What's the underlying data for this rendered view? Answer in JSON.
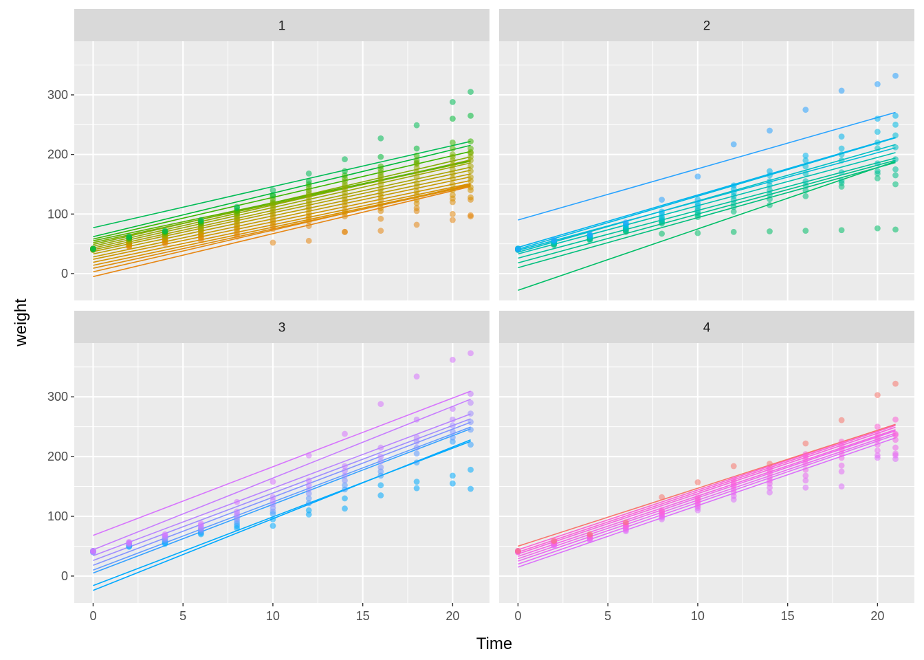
{
  "chart_data": {
    "type": "scatter",
    "facet_by": "Diet",
    "xlabel": "Time",
    "ylabel": "weight",
    "x_ticks": [
      0,
      5,
      10,
      15,
      20
    ],
    "y_ticks": [
      0,
      100,
      200,
      300
    ],
    "xlim": [
      -1.05,
      22.05
    ],
    "ylim": [
      -45,
      390
    ],
    "grid": true,
    "times": [
      0,
      2,
      4,
      6,
      8,
      10,
      12,
      14,
      16,
      18,
      20,
      21
    ],
    "panels": [
      {
        "label": "1",
        "chicks": [
          {
            "color": "#E68613",
            "intercept": -5,
            "slope": 7.2,
            "weights": [
              41,
              45,
              50,
              56,
              62,
              52,
              55,
              70,
              72,
              82,
              90,
              98
            ]
          },
          {
            "color": "#E2890E",
            "intercept": 3,
            "slope": 7.0,
            "weights": [
              42,
              47,
              53,
              60,
              66,
              75,
              80,
              70,
              92,
              105,
              100,
              96
            ]
          },
          {
            "color": "#DD8C0B",
            "intercept": 9,
            "slope": 6.6,
            "weights": [
              40,
              46,
              54,
              61,
              70,
              80,
              88,
              96,
              105,
              110,
              120,
              124
            ]
          },
          {
            "color": "#D89000",
            "intercept": 14,
            "slope": 6.4,
            "weights": [
              41,
              49,
              56,
              64,
              74,
              84,
              93,
              102,
              110,
              118,
              126,
              128
            ]
          },
          {
            "color": "#D39200",
            "intercept": 19,
            "slope": 6.3,
            "weights": [
              42,
              50,
              58,
              66,
              77,
              88,
              97,
              106,
              117,
              124,
              132,
              140
            ]
          },
          {
            "color": "#CD9600",
            "intercept": 24,
            "slope": 6.3,
            "weights": [
              41,
              51,
              59,
              68,
              80,
              91,
              102,
              114,
              124,
              132,
              140,
              145
            ]
          },
          {
            "color": "#C49A00",
            "intercept": 28,
            "slope": 6.4,
            "weights": [
              42,
              52,
              61,
              71,
              83,
              96,
              108,
              120,
              130,
              138,
              150,
              156
            ]
          },
          {
            "color": "#BB9D00",
            "intercept": 33,
            "slope": 6.4,
            "weights": [
              41,
              53,
              62,
              73,
              87,
              100,
              112,
              124,
              136,
              146,
              160,
              162
            ]
          },
          {
            "color": "#B3A000",
            "intercept": 37,
            "slope": 6.5,
            "weights": [
              40,
              54,
              63,
              74,
              90,
              104,
              118,
              130,
              142,
              152,
              168,
              172
            ]
          },
          {
            "color": "#A9A400",
            "intercept": 40,
            "slope": 6.6,
            "weights": [
              42,
              55,
              64,
              76,
              92,
              108,
              122,
              136,
              150,
              162,
              175,
              180
            ]
          },
          {
            "color": "#9EA700",
            "intercept": 43,
            "slope": 6.8,
            "weights": [
              41,
              56,
              65,
              78,
              95,
              112,
              128,
              142,
              156,
              170,
              182,
              190
            ]
          },
          {
            "color": "#93AA00",
            "intercept": 46,
            "slope": 6.9,
            "weights": [
              42,
              57,
              66,
              80,
              98,
              116,
              132,
              146,
              162,
              178,
              190,
              196
            ]
          },
          {
            "color": "#85AD00",
            "intercept": 49,
            "slope": 7.0,
            "weights": [
              41,
              58,
              67,
              82,
              100,
              118,
              136,
              150,
              165,
              184,
              196,
              202
            ]
          },
          {
            "color": "#77AF00",
            "intercept": 52,
            "slope": 6.5,
            "weights": [
              40,
              58,
              68,
              84,
              102,
              120,
              140,
              155,
              170,
              186,
              200,
              204
            ]
          },
          {
            "color": "#5BB300",
            "intercept": 55,
            "slope": 6.4,
            "weights": [
              41,
              59,
              69,
              85,
              104,
              125,
              145,
              160,
              175,
              190,
              210,
              210
            ]
          },
          {
            "color": "#3BB700",
            "intercept": 58,
            "slope": 7.0,
            "weights": [
              42,
              60,
              70,
              86,
              106,
              130,
              150,
              165,
              180,
              198,
              220,
              222
            ]
          },
          {
            "color": "#00BA38",
            "intercept": 62,
            "slope": 7.3,
            "weights": [
              41,
              61,
              71,
              88,
              110,
              132,
              155,
              172,
              196,
              210,
              260,
              265
            ]
          },
          {
            "color": "#00BC56",
            "intercept": 77,
            "slope": 6.9,
            "weights": [
              42,
              62,
              72,
              90,
              112,
              140,
              168,
              192,
              227,
              249,
              288,
              305
            ]
          }
        ]
      },
      {
        "label": "2",
        "chicks": [
          {
            "color": "#00BE67",
            "intercept": -28,
            "slope": 10.3,
            "weights": [
              40,
              49,
              58,
              72,
              67,
              68,
              70,
              71,
              72,
              73,
              76,
              74
            ]
          },
          {
            "color": "#00BF7D",
            "intercept": 10,
            "slope": 8.4,
            "weights": [
              41,
              48,
              56,
              70,
              84,
              95,
              104,
              115,
              130,
              146,
              160,
              150
            ]
          },
          {
            "color": "#00C08B",
            "intercept": 18,
            "slope": 8.2,
            "weights": [
              42,
              50,
              58,
              73,
              86,
              99,
              112,
              125,
              140,
              152,
              168,
              165
            ]
          },
          {
            "color": "#00C19A",
            "intercept": 26,
            "slope": 8.0,
            "weights": [
              40,
              51,
              60,
              75,
              88,
              102,
              118,
              133,
              148,
              156,
              172,
              175
            ]
          },
          {
            "color": "#00C0AF",
            "intercept": 33,
            "slope": 8.1,
            "weights": [
              41,
              52,
              61,
              76,
              90,
              106,
              124,
              140,
              155,
              170,
              185,
              192
            ]
          },
          {
            "color": "#00BFC4",
            "intercept": 36,
            "slope": 8.6,
            "weights": [
              42,
              53,
              62,
              78,
              92,
              110,
              130,
              148,
              168,
              190,
              210,
              212
            ]
          },
          {
            "color": "#00BCD8",
            "intercept": 39,
            "slope": 8.2,
            "weights": [
              40,
              54,
              63,
              80,
              95,
              114,
              136,
              155,
              180,
              200,
              220,
              232
            ]
          },
          {
            "color": "#00B9E3",
            "intercept": 41,
            "slope": 8.9,
            "weights": [
              41,
              55,
              64,
              82,
              100,
              118,
              142,
              165,
              190,
              210,
              238,
              250
            ]
          },
          {
            "color": "#00B4EF",
            "intercept": 44,
            "slope": 8.8,
            "weights": [
              42,
              56,
              65,
              84,
              104,
              124,
              148,
              172,
              198,
              230,
              260,
              265
            ]
          },
          {
            "color": "#29A3FF",
            "intercept": 90,
            "slope": 8.6,
            "weights": [
              41,
              57,
              66,
              86,
              124,
              163,
              217,
              240,
              275,
              307,
              318,
              332
            ]
          }
        ]
      },
      {
        "label": "3",
        "chicks": [
          {
            "color": "#00A9FF",
            "intercept": -24,
            "slope": 12.0,
            "weights": [
              42,
              49,
              54,
              70,
              80,
              84,
              103,
              113,
              135,
              147,
              155,
              146
            ]
          },
          {
            "color": "#00ABFD",
            "intercept": -16,
            "slope": 11.5,
            "weights": [
              41,
              50,
              56,
              72,
              84,
              95,
              110,
              130,
              152,
              158,
              168,
              178
            ]
          },
          {
            "color": "#35A2FF",
            "intercept": 5,
            "slope": 11.5,
            "weights": [
              40,
              51,
              58,
              74,
              88,
              104,
              122,
              145,
              168,
              190,
              225,
              220
            ]
          },
          {
            "color": "#619CFF",
            "intercept": 10,
            "slope": 11.4,
            "weights": [
              42,
              52,
              60,
              76,
              92,
              108,
              130,
              152,
              175,
              205,
              232,
              245
            ]
          },
          {
            "color": "#8494FF",
            "intercept": 18,
            "slope": 11.4,
            "weights": [
              41,
              53,
              62,
              78,
              96,
              114,
              138,
              160,
              182,
              215,
              242,
              258
            ]
          },
          {
            "color": "#9F8CFF",
            "intercept": 26,
            "slope": 11.3,
            "weights": [
              40,
              54,
              64,
              80,
              100,
              120,
              145,
              168,
              192,
              225,
              252,
              272
            ]
          },
          {
            "color": "#B983FF",
            "intercept": 34,
            "slope": 11.3,
            "weights": [
              42,
              55,
              66,
              82,
              104,
              126,
              152,
              176,
              200,
              232,
              262,
              290
            ]
          },
          {
            "color": "#C77CFF",
            "intercept": 44,
            "slope": 12.0,
            "weights": [
              41,
              56,
              68,
              85,
              108,
              132,
              160,
              184,
              215,
              262,
              280,
              305
            ]
          },
          {
            "color": "#D774FD",
            "intercept": 68,
            "slope": 11.5,
            "weights": [
              42,
              57,
              70,
              88,
              124,
              158,
              202,
              238,
              288,
              334,
              362,
              373
            ]
          }
        ]
      },
      {
        "label": "4",
        "chicks": [
          {
            "color": "#DC71FA",
            "intercept": 15,
            "slope": 10.3,
            "weights": [
              42,
              51,
              60,
              75,
              95,
              110,
              128,
              140,
              148,
              150,
              198,
              196
            ]
          },
          {
            "color": "#E36EF6",
            "intercept": 20,
            "slope": 10.3,
            "weights": [
              41,
              52,
              62,
              77,
              98,
              114,
              134,
              148,
              160,
              175,
              202,
              202
            ]
          },
          {
            "color": "#EA6AF1",
            "intercept": 25,
            "slope": 10.2,
            "weights": [
              40,
              53,
              63,
              79,
              100,
              117,
              140,
              155,
              168,
              185,
              210,
              205
            ]
          },
          {
            "color": "#EF67EB",
            "intercept": 29,
            "slope": 10.2,
            "weights": [
              42,
              54,
              64,
              81,
              102,
              120,
              145,
              160,
              178,
              198,
              220,
              215
            ]
          },
          {
            "color": "#F365E6",
            "intercept": 33,
            "slope": 10.1,
            "weights": [
              41,
              55,
              65,
              83,
              104,
              123,
              150,
              165,
              188,
              205,
              228,
              228
            ]
          },
          {
            "color": "#F763E0",
            "intercept": 37,
            "slope": 10.1,
            "weights": [
              40,
              56,
              66,
              84,
              106,
              126,
              153,
              172,
              195,
              212,
              232,
              236
            ]
          },
          {
            "color": "#FA62DB",
            "intercept": 40,
            "slope": 10.1,
            "weights": [
              42,
              57,
              67,
              86,
              108,
              129,
              157,
              178,
              200,
              218,
              238,
              238
            ]
          },
          {
            "color": "#FC61D5",
            "intercept": 44,
            "slope": 10.0,
            "weights": [
              41,
              58,
              68,
              88,
              110,
              132,
              162,
              182,
              204,
              225,
              250,
              262
            ]
          },
          {
            "color": "#F8766D",
            "intercept": 50,
            "slope": 9.7,
            "weights": [
              42,
              59,
              70,
              90,
              132,
              157,
              184,
              188,
              222,
              261,
              303,
              322
            ]
          }
        ]
      }
    ]
  }
}
